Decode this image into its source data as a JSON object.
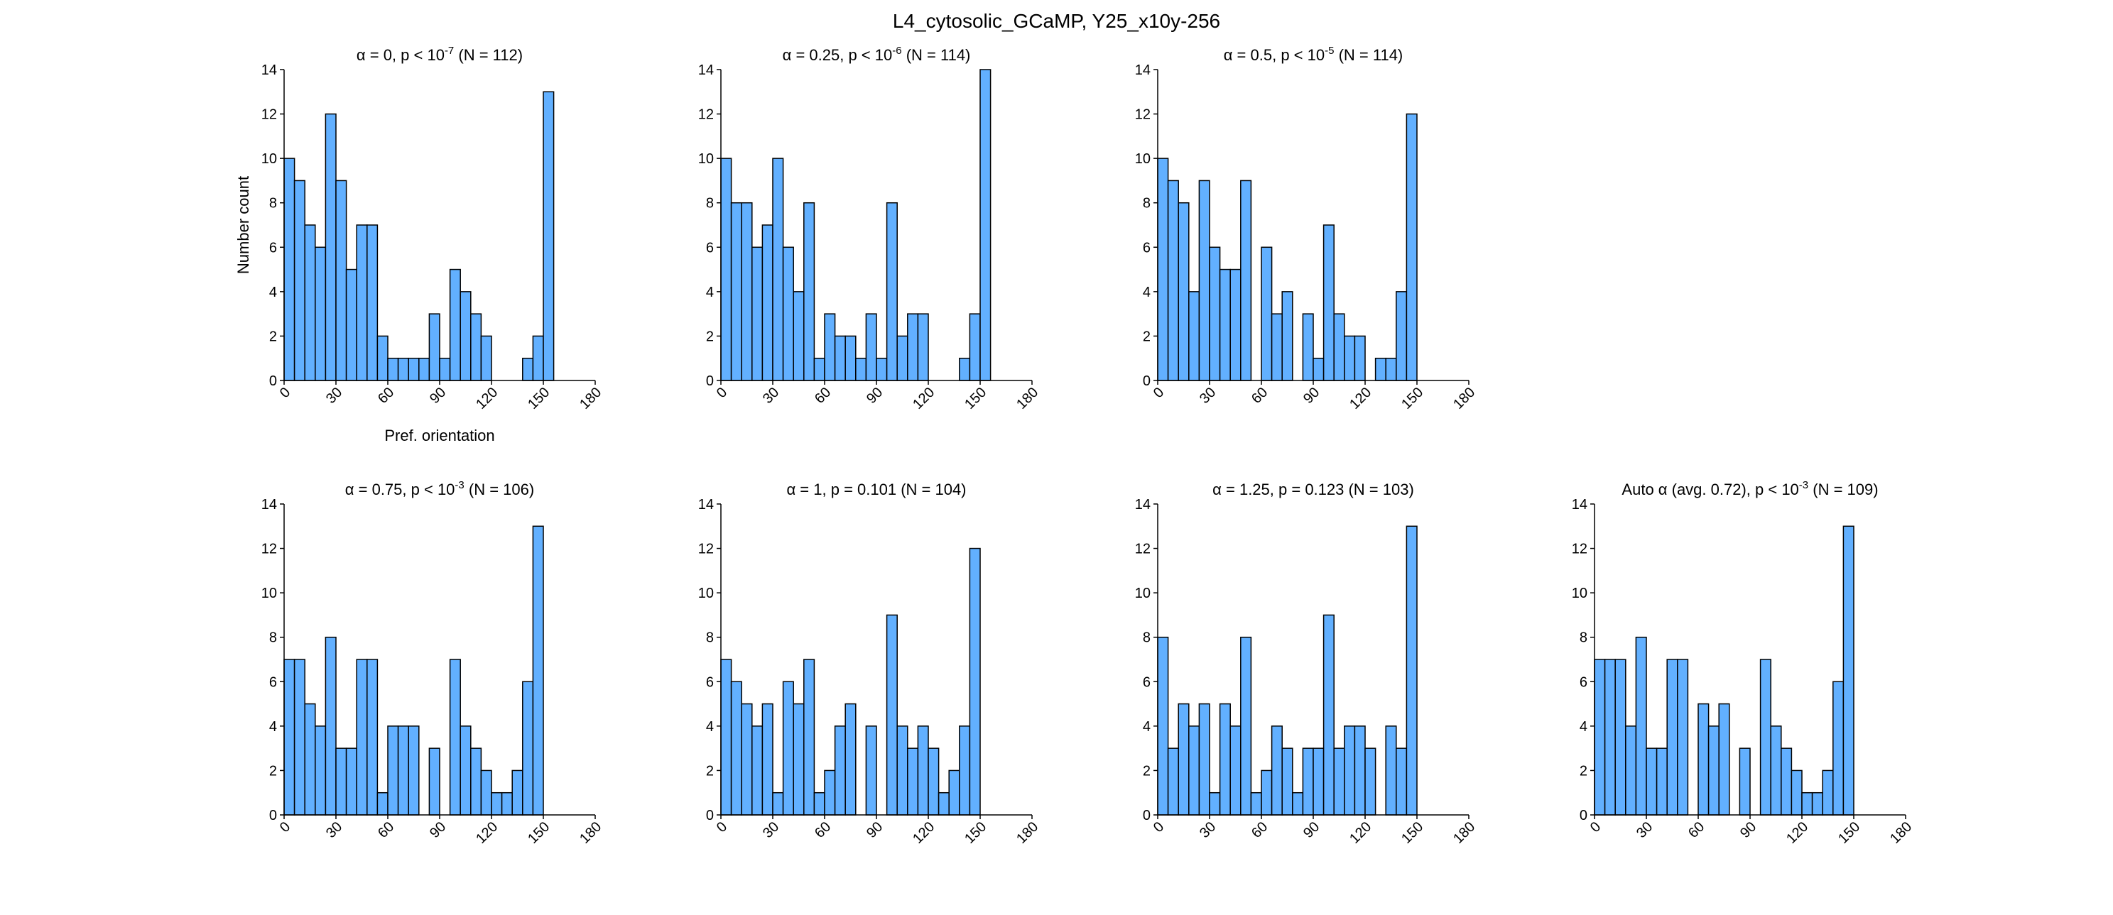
{
  "figure_title": "L4_cytosolic_GCaMP, Y25_x10y-256",
  "chart_data": [
    {
      "type": "bar",
      "title": {
        "prefix": "α = 0, p < 10",
        "sup": "-7",
        "suffix": " (N = 112)"
      },
      "xlabel": "Pref. orientation",
      "ylabel": "Number count",
      "xlim": [
        0,
        180
      ],
      "ylim": [
        0,
        14
      ],
      "xticks": [
        0,
        30,
        60,
        90,
        120,
        150,
        180
      ],
      "yticks": [
        0,
        2,
        4,
        6,
        8,
        10,
        12,
        14
      ],
      "bin_width": 6,
      "values": [
        10,
        9,
        7,
        6,
        12,
        9,
        5,
        7,
        7,
        2,
        1,
        1,
        1,
        1,
        3,
        1,
        5,
        4,
        3,
        2,
        0,
        0,
        0,
        1,
        2,
        13
      ],
      "grid": false
    },
    {
      "type": "bar",
      "title": {
        "prefix": "α = 0.25, p < 10",
        "sup": "-6",
        "suffix": " (N = 114)"
      },
      "xlabel": "",
      "ylabel": "",
      "xlim": [
        0,
        180
      ],
      "ylim": [
        0,
        14
      ],
      "xticks": [
        0,
        30,
        60,
        90,
        120,
        150,
        180
      ],
      "yticks": [
        0,
        2,
        4,
        6,
        8,
        10,
        12,
        14
      ],
      "bin_width": 6,
      "values": [
        10,
        8,
        8,
        6,
        7,
        10,
        6,
        4,
        8,
        1,
        3,
        2,
        2,
        1,
        3,
        1,
        8,
        2,
        3,
        3,
        0,
        0,
        0,
        1,
        3,
        14
      ],
      "grid": false
    },
    {
      "type": "bar",
      "title": {
        "prefix": "α = 0.5, p < 10",
        "sup": "-5",
        "suffix": " (N = 114)"
      },
      "xlabel": "",
      "ylabel": "",
      "xlim": [
        0,
        180
      ],
      "ylim": [
        0,
        14
      ],
      "xticks": [
        0,
        30,
        60,
        90,
        120,
        150,
        180
      ],
      "yticks": [
        0,
        2,
        4,
        6,
        8,
        10,
        12,
        14
      ],
      "bin_width": 6,
      "values": [
        10,
        9,
        8,
        4,
        9,
        6,
        5,
        5,
        9,
        0,
        6,
        3,
        4,
        0,
        3,
        1,
        7,
        3,
        2,
        2,
        0,
        1,
        1,
        4,
        12
      ],
      "grid": false
    },
    {
      "type": "bar",
      "title": {
        "prefix": "α = 0.75, p < 10",
        "sup": "-3",
        "suffix": " (N = 106)"
      },
      "xlabel": "",
      "ylabel": "",
      "xlim": [
        0,
        180
      ],
      "ylim": [
        0,
        14
      ],
      "xticks": [
        0,
        30,
        60,
        90,
        120,
        150,
        180
      ],
      "yticks": [
        0,
        2,
        4,
        6,
        8,
        10,
        12,
        14
      ],
      "bin_width": 6,
      "values": [
        7,
        7,
        5,
        4,
        8,
        3,
        3,
        7,
        7,
        1,
        4,
        4,
        4,
        0,
        3,
        0,
        7,
        4,
        3,
        2,
        1,
        1,
        2,
        6,
        13
      ],
      "grid": false
    },
    {
      "type": "bar",
      "title": {
        "prefix": "α = 1, p = 0.101 (N = 104)",
        "sup": "",
        "suffix": ""
      },
      "xlabel": "",
      "ylabel": "",
      "xlim": [
        0,
        180
      ],
      "ylim": [
        0,
        14
      ],
      "xticks": [
        0,
        30,
        60,
        90,
        120,
        150,
        180
      ],
      "yticks": [
        0,
        2,
        4,
        6,
        8,
        10,
        12,
        14
      ],
      "bin_width": 6,
      "values": [
        7,
        6,
        5,
        4,
        5,
        1,
        6,
        5,
        7,
        1,
        2,
        4,
        5,
        0,
        4,
        0,
        9,
        4,
        3,
        4,
        3,
        1,
        2,
        4,
        12
      ],
      "grid": false
    },
    {
      "type": "bar",
      "title": {
        "prefix": "α = 1.25, p = 0.123 (N = 103)",
        "sup": "",
        "suffix": ""
      },
      "xlabel": "",
      "ylabel": "",
      "xlim": [
        0,
        180
      ],
      "ylim": [
        0,
        14
      ],
      "xticks": [
        0,
        30,
        60,
        90,
        120,
        150,
        180
      ],
      "yticks": [
        0,
        2,
        4,
        6,
        8,
        10,
        12,
        14
      ],
      "bin_width": 6,
      "values": [
        8,
        3,
        5,
        4,
        5,
        1,
        5,
        4,
        8,
        1,
        2,
        4,
        3,
        1,
        3,
        3,
        9,
        3,
        4,
        4,
        3,
        0,
        4,
        3,
        13
      ],
      "grid": false
    },
    {
      "type": "bar",
      "title": {
        "prefix": "Auto α (avg. 0.72), p < 10",
        "sup": "-3",
        "suffix": " (N = 109)"
      },
      "xlabel": "",
      "ylabel": "",
      "xlim": [
        0,
        180
      ],
      "ylim": [
        0,
        14
      ],
      "xticks": [
        0,
        30,
        60,
        90,
        120,
        150,
        180
      ],
      "yticks": [
        0,
        2,
        4,
        6,
        8,
        10,
        12,
        14
      ],
      "bin_width": 6,
      "values": [
        7,
        7,
        7,
        4,
        8,
        3,
        3,
        7,
        7,
        0,
        5,
        4,
        5,
        0,
        3,
        0,
        7,
        4,
        3,
        2,
        1,
        1,
        2,
        6,
        13
      ],
      "grid": false
    }
  ],
  "colors": {
    "bar_fill": "#62b0ff",
    "bar_edge": "#000000"
  }
}
